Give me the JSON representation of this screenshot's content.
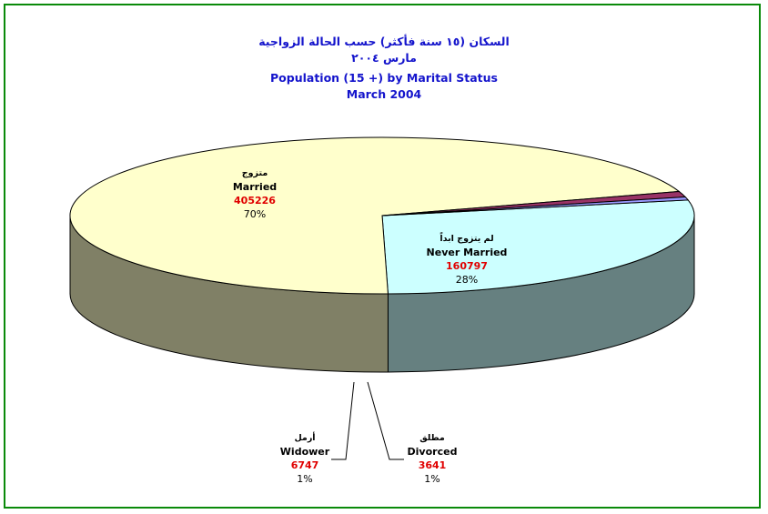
{
  "titles": {
    "ar_line1": "السكان (١٥ سنة فأكثر) حسب الحالة الزواجية",
    "ar_line2": "مارس ٢٠٠٤",
    "en_line1": "Population (15 +) by Marital Status",
    "en_line2": "March 2004"
  },
  "colors": {
    "frame": "#0a8a0a",
    "title": "#1414cc",
    "value": "#e00000"
  },
  "chart_data": {
    "type": "pie",
    "title": "Population (15 +) by Marital Status",
    "subtitle": "March 2004",
    "three_d": true,
    "slices": [
      {
        "key": "never_married",
        "ar": "لم يتزوج ابداً",
        "label": "Never Married",
        "value": 160797,
        "percent": "28%",
        "color": "#ccffff",
        "side_color": "#668080"
      },
      {
        "key": "married",
        "ar": "متزوج",
        "label": "Married",
        "value": 405226,
        "percent": "70%",
        "color": "#ffffcc",
        "side_color": "#808066"
      },
      {
        "key": "widower",
        "ar": "أرمل",
        "label": "Widower",
        "value": 6747,
        "percent": "1%",
        "color": "#993366",
        "side_color": "#4d1a33"
      },
      {
        "key": "divorced",
        "ar": "مطلق",
        "label": "Divorced",
        "value": 3641,
        "percent": "1%",
        "color": "#9999ff",
        "side_color": "#4d4d80"
      }
    ]
  }
}
